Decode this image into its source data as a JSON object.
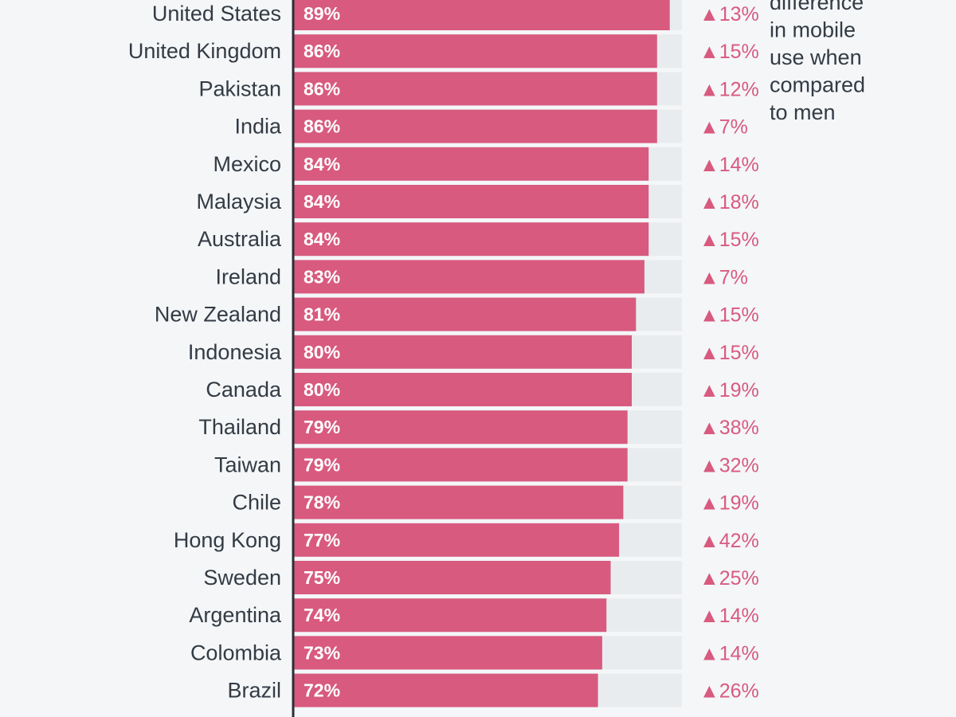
{
  "chart_data": {
    "type": "bar",
    "orientation": "horizontal",
    "value_max": 100,
    "categories": [
      "United States",
      "United Kingdom",
      "Pakistan",
      "India",
      "Mexico",
      "Malaysia",
      "Australia",
      "Ireland",
      "New Zealand",
      "Indonesia",
      "Canada",
      "Thailand",
      "Taiwan",
      "Chile",
      "Hong Kong",
      "Sweden",
      "Argentina",
      "Colombia",
      "Brazil"
    ],
    "values": [
      89,
      86,
      86,
      86,
      84,
      84,
      84,
      83,
      81,
      80,
      80,
      79,
      79,
      78,
      77,
      75,
      74,
      73,
      72
    ],
    "value_labels": [
      "89%",
      "86%",
      "86%",
      "86%",
      "84%",
      "84%",
      "84%",
      "83%",
      "81%",
      "80%",
      "80%",
      "79%",
      "79%",
      "78%",
      "77%",
      "75%",
      "74%",
      "73%",
      "72%"
    ],
    "differences": [
      13,
      15,
      12,
      7,
      14,
      18,
      15,
      7,
      15,
      15,
      19,
      38,
      32,
      19,
      42,
      25,
      14,
      14,
      26
    ],
    "difference_labels": [
      "▲13%",
      "▲15%",
      "▲12%",
      "▲7%",
      "▲14%",
      "▲18%",
      "▲15%",
      "▲7%",
      "▲15%",
      "▲15%",
      "▲19%",
      "▲38%",
      "▲32%",
      "▲19%",
      "▲42%",
      "▲25%",
      "▲14%",
      "▲14%",
      "▲26%"
    ],
    "annotation_lines": [
      "difference",
      "in mobile",
      "use when",
      "compared",
      "to men"
    ]
  },
  "colors": {
    "bar": "#d85a7f",
    "track": "#e9ecef",
    "axis": "#2b2f36"
  }
}
